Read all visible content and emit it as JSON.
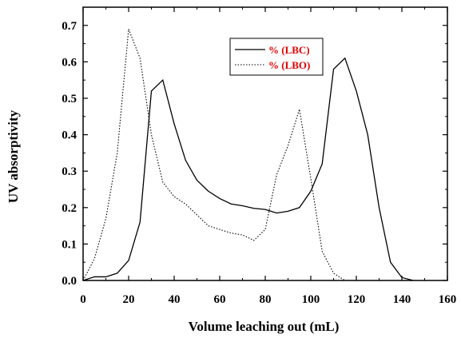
{
  "chart_data": {
    "type": "line",
    "title": "",
    "xlabel": "Volume leaching out (mL)",
    "ylabel": "UV absorptivity",
    "xlim": [
      0,
      160
    ],
    "ylim": [
      0,
      0.75
    ],
    "x_ticks": [
      0,
      20,
      40,
      60,
      80,
      100,
      120,
      140,
      160
    ],
    "x_tick_labels": [
      "0",
      "20",
      "40",
      "60",
      "80",
      "100",
      "120",
      "140",
      "160"
    ],
    "y_ticks": [
      0.0,
      0.1,
      0.2,
      0.3,
      0.4,
      0.5,
      0.6,
      0.7
    ],
    "y_tick_labels": [
      "0.0",
      "0.1",
      "0.2",
      "0.3",
      "0.4",
      "0.5",
      "0.6",
      "0.7"
    ],
    "grid": false,
    "legend_position": "top-center",
    "legend_text_color": "#e00000",
    "series": [
      {
        "name": "% (LBC)",
        "style": "solid",
        "color": "#000000",
        "points": [
          [
            0,
            0.0
          ],
          [
            5,
            0.01
          ],
          [
            10,
            0.01
          ],
          [
            15,
            0.02
          ],
          [
            20,
            0.055
          ],
          [
            25,
            0.16
          ],
          [
            30,
            0.52
          ],
          [
            35,
            0.55
          ],
          [
            40,
            0.43
          ],
          [
            45,
            0.33
          ],
          [
            50,
            0.275
          ],
          [
            55,
            0.245
          ],
          [
            60,
            0.225
          ],
          [
            65,
            0.21
          ],
          [
            70,
            0.205
          ],
          [
            75,
            0.198
          ],
          [
            80,
            0.195
          ],
          [
            85,
            0.185
          ],
          [
            90,
            0.19
          ],
          [
            95,
            0.2
          ],
          [
            100,
            0.245
          ],
          [
            105,
            0.32
          ],
          [
            110,
            0.58
          ],
          [
            115,
            0.61
          ],
          [
            120,
            0.52
          ],
          [
            125,
            0.4
          ],
          [
            130,
            0.2
          ],
          [
            135,
            0.05
          ],
          [
            140,
            0.008
          ],
          [
            145,
            0.0
          ]
        ]
      },
      {
        "name": "% (LBO)",
        "style": "dotted",
        "color": "#000000",
        "points": [
          [
            0,
            0.0
          ],
          [
            5,
            0.06
          ],
          [
            10,
            0.17
          ],
          [
            15,
            0.35
          ],
          [
            20,
            0.69
          ],
          [
            25,
            0.61
          ],
          [
            30,
            0.4
          ],
          [
            35,
            0.27
          ],
          [
            40,
            0.23
          ],
          [
            45,
            0.21
          ],
          [
            50,
            0.18
          ],
          [
            55,
            0.15
          ],
          [
            60,
            0.14
          ],
          [
            65,
            0.13
          ],
          [
            70,
            0.125
          ],
          [
            75,
            0.11
          ],
          [
            80,
            0.14
          ],
          [
            85,
            0.29
          ],
          [
            90,
            0.37
          ],
          [
            95,
            0.47
          ],
          [
            100,
            0.28
          ],
          [
            105,
            0.08
          ],
          [
            110,
            0.02
          ],
          [
            115,
            0.0
          ]
        ]
      }
    ]
  }
}
